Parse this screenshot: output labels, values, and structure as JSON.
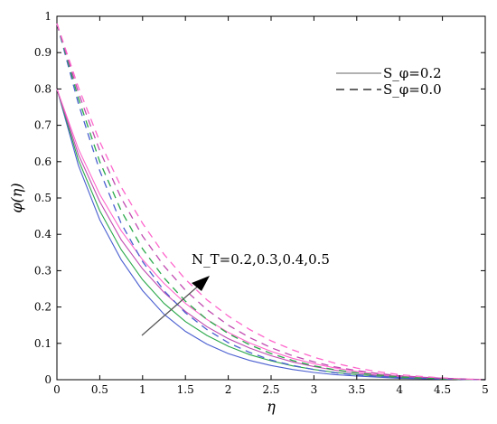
{
  "chart_data": {
    "type": "line",
    "xlabel": "η",
    "ylabel": "φ(η)",
    "xlim": [
      0,
      5
    ],
    "ylim": [
      0,
      1
    ],
    "xticks": [
      "0",
      "0.5",
      "1",
      "1.5",
      "2",
      "2.5",
      "3",
      "3.5",
      "4",
      "4.5",
      "5"
    ],
    "yticks": [
      "0",
      "0.1",
      "0.2",
      "0.3",
      "0.4",
      "0.5",
      "0.6",
      "0.7",
      "0.8",
      "0.9",
      "1"
    ],
    "grid": false,
    "legend": {
      "placement": "top-right",
      "entries": [
        {
          "label": "S_φ=0.2",
          "style": "solid"
        },
        {
          "label": "S_φ=0.0",
          "style": "dashed"
        }
      ]
    },
    "annotation": {
      "text": "N_T=0.2,0.3,0.4,0.5",
      "arrow": "increasing N_T"
    },
    "x": [
      0,
      0.25,
      0.5,
      0.75,
      1,
      1.25,
      1.5,
      1.75,
      2,
      2.25,
      2.5,
      2.75,
      3,
      3.25,
      3.5,
      3.75,
      4,
      4.25,
      4.5,
      4.75,
      5
    ],
    "series": [
      {
        "group": "S_φ=0.2",
        "style": "solid",
        "color": "#4a5fd0",
        "values": [
          0.8,
          0.59,
          0.44,
          0.33,
          0.245,
          0.18,
          0.133,
          0.098,
          0.072,
          0.053,
          0.039,
          0.028,
          0.02,
          0.014,
          0.01,
          0.007,
          0.004,
          0.003,
          0.002,
          0.001,
          0
        ]
      },
      {
        "group": "S_φ=0.2",
        "style": "solid",
        "color": "#2aa84a",
        "values": [
          0.8,
          0.605,
          0.465,
          0.358,
          0.275,
          0.21,
          0.16,
          0.122,
          0.092,
          0.069,
          0.052,
          0.038,
          0.028,
          0.02,
          0.014,
          0.01,
          0.006,
          0.004,
          0.002,
          0.001,
          0
        ]
      },
      {
        "group": "S_φ=0.2",
        "style": "solid",
        "color": "#c04ab0",
        "values": [
          0.8,
          0.62,
          0.49,
          0.385,
          0.305,
          0.24,
          0.188,
          0.146,
          0.113,
          0.087,
          0.066,
          0.049,
          0.036,
          0.026,
          0.018,
          0.012,
          0.008,
          0.005,
          0.003,
          0.001,
          0
        ]
      },
      {
        "group": "S_φ=0.2",
        "style": "solid",
        "color": "#ff66cc",
        "values": [
          0.8,
          0.635,
          0.51,
          0.41,
          0.33,
          0.265,
          0.21,
          0.166,
          0.13,
          0.101,
          0.078,
          0.059,
          0.044,
          0.032,
          0.023,
          0.016,
          0.01,
          0.006,
          0.003,
          0.001,
          0
        ]
      },
      {
        "group": "S_φ=0.0",
        "style": "dashed",
        "color": "#4a5fd0",
        "values": [
          0.98,
          0.76,
          0.575,
          0.43,
          0.325,
          0.245,
          0.184,
          0.138,
          0.102,
          0.075,
          0.054,
          0.039,
          0.028,
          0.019,
          0.013,
          0.009,
          0.006,
          0.004,
          0.002,
          0.001,
          0
        ]
      },
      {
        "group": "S_φ=0.0",
        "style": "dashed",
        "color": "#2aa84a",
        "values": [
          0.98,
          0.775,
          0.6,
          0.465,
          0.36,
          0.28,
          0.216,
          0.166,
          0.127,
          0.096,
          0.072,
          0.053,
          0.038,
          0.027,
          0.019,
          0.013,
          0.008,
          0.005,
          0.003,
          0.001,
          0
        ]
      },
      {
        "group": "S_φ=0.0",
        "style": "dashed",
        "color": "#c04ab0",
        "values": [
          0.98,
          0.79,
          0.63,
          0.5,
          0.395,
          0.313,
          0.246,
          0.193,
          0.15,
          0.116,
          0.088,
          0.066,
          0.049,
          0.035,
          0.025,
          0.017,
          0.011,
          0.007,
          0.004,
          0.002,
          0
        ]
      },
      {
        "group": "S_φ=0.0",
        "style": "dashed",
        "color": "#ff66cc",
        "values": [
          0.98,
          0.805,
          0.655,
          0.53,
          0.43,
          0.345,
          0.276,
          0.22,
          0.175,
          0.138,
          0.107,
          0.082,
          0.062,
          0.045,
          0.032,
          0.022,
          0.014,
          0.009,
          0.005,
          0.002,
          0
        ]
      }
    ]
  }
}
